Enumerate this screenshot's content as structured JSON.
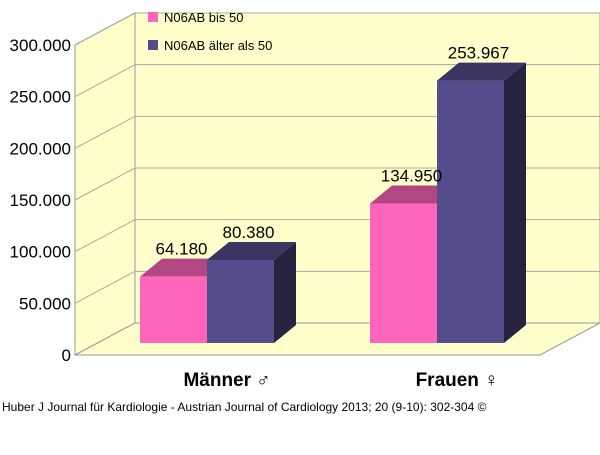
{
  "chart_data": {
    "type": "bar",
    "categories": [
      "Männer ♂",
      "Frauen ♀"
    ],
    "series": [
      {
        "name": "N06AB bis 50",
        "values": [
          64180,
          134950
        ],
        "labels": [
          "64.180",
          "134.950"
        ],
        "color": "#ff66bb"
      },
      {
        "name": "N06AB älter als 50",
        "values": [
          80380,
          253967
        ],
        "labels": [
          "80.380",
          "253.967"
        ],
        "color": "#554c8c"
      }
    ],
    "ylim": [
      0,
      300000
    ],
    "yticks": [
      0,
      50000,
      100000,
      150000,
      200000,
      250000,
      300000
    ],
    "ytick_labels": [
      "0",
      "50.000",
      "100.000",
      "150.000",
      "200.000",
      "250.000",
      "300.000"
    ],
    "grid": true,
    "legend_position": "top-left",
    "background_color": "#ffffcc"
  },
  "credit": "Huber J Journal für Kardiologie - Austrian Journal of Cardiology 2013; 20 (9-10): 302-304 ©"
}
